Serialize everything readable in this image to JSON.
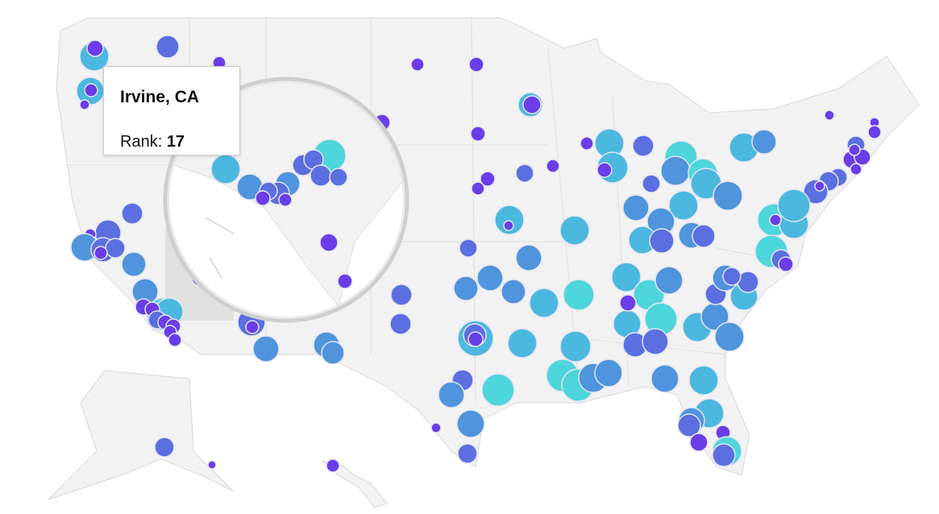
{
  "tooltip": {
    "title": "Irvine, CA",
    "rank_label": "Rank:",
    "rank": 17
  }
}
